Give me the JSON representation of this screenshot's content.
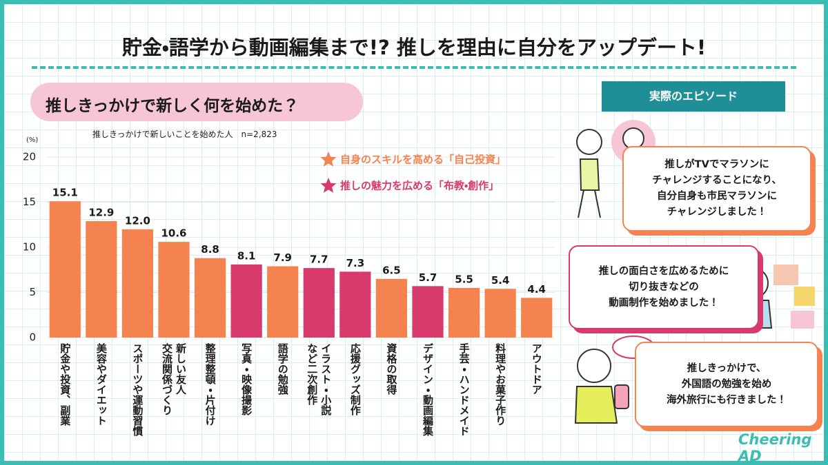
{
  "page_title": "貯金・語学から動画編集まで!? 推しを理由に自分をアップデート!",
  "chart_data": {
    "type": "bar",
    "title": "推しきっかけで新しく何を始めた？",
    "subtitle": "推しきっかけで新しいことを始めた人　n=2,823",
    "y_unit": "(%)",
    "categories": [
      "貯金や投資、副業",
      "美容やダイエット",
      "スポーツや運動習慣",
      "新しい友人\n交流関係づくり",
      "整理整頓・片付け",
      "写真・映像撮影",
      "語学の勉強",
      "イラスト・小説\nなど二次創作",
      "応援グッズ制作",
      "資格の取得",
      "デザイン・動画編集",
      "手芸・ハンドメイド",
      "料理やお菓子作り",
      "アウトドア"
    ],
    "values": [
      15.1,
      12.9,
      12.0,
      10.6,
      8.8,
      8.1,
      7.9,
      7.7,
      7.3,
      6.5,
      5.7,
      5.5,
      5.4,
      4.4
    ],
    "value_labels": [
      "15.1",
      "12.9",
      "12.0",
      "10.6",
      "8.8",
      "8.1",
      "7.9",
      "7.7",
      "7.3",
      "6.5",
      "5.7",
      "5.5",
      "5.4",
      "4.4"
    ],
    "colors": [
      "#f5834f",
      "#f5834f",
      "#f5834f",
      "#f5834f",
      "#f5834f",
      "#d83a6b",
      "#f5834f",
      "#d83a6b",
      "#d83a6b",
      "#f5834f",
      "#d83a6b",
      "#f5834f",
      "#f5834f",
      "#f5834f"
    ],
    "legend": [
      {
        "name": "自身のスキルを高める「自己投資」",
        "color": "#f5834f"
      },
      {
        "name": "推しの魅力を広める「布教・創作」",
        "color": "#d83a6b"
      }
    ],
    "ylim": [
      0,
      20
    ],
    "yticks": [
      0,
      5,
      10,
      15,
      20
    ],
    "grid": true
  },
  "episodes": {
    "heading": "実際のエピソード",
    "items": [
      {
        "lines": [
          "推しがTVでマラソンに",
          "チャレンジすることになり、",
          "自分自身も市民マラソンに",
          "チャレンジしました！"
        ],
        "color": "#f5834f"
      },
      {
        "lines": [
          "推しの面白さを広めるために",
          "切り抜きなどの",
          "動画制作を始めました！"
        ],
        "color": "#d83a6b"
      },
      {
        "lines": [
          "推しきっかけで、",
          "外国語の勉強を始め",
          "海外旅行にも行きました！"
        ],
        "color": "#f5834f"
      }
    ]
  },
  "logo": "Cheering AD"
}
